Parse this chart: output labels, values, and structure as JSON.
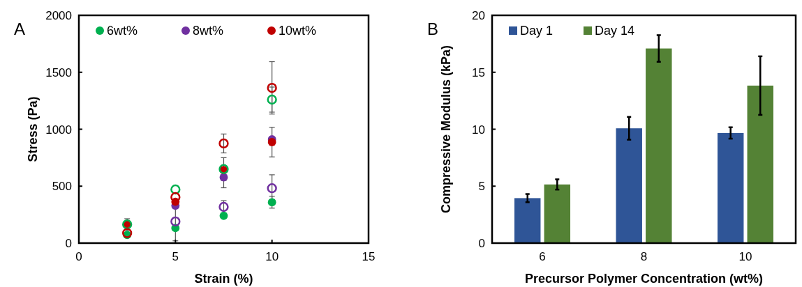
{
  "chart_data": [
    {
      "type": "scatter",
      "title": "A",
      "xlabel": "Strain (%)",
      "ylabel": "Stress (Pa)",
      "xlim": [
        0,
        15
      ],
      "xticks": [
        0,
        5,
        10,
        15
      ],
      "ylim": [
        0,
        2000
      ],
      "yticks": [
        0,
        500,
        1000,
        1500,
        2000
      ],
      "legend": "top",
      "marker": "circle",
      "grid": false,
      "series": [
        {
          "name": "6wt%",
          "color": "#00b050",
          "x": [
            2.5,
            5,
            7.5,
            10
          ],
          "values": [
            72,
            133,
            240,
            359
          ],
          "errors": [
            null,
            null,
            null,
            52
          ]
        },
        {
          "name": "8wt%",
          "color": "#7030a0",
          "x": [
            5,
            7.5,
            10
          ],
          "values": [
            328,
            578,
            912
          ],
          "errors": [
            null,
            92,
            null
          ]
        },
        {
          "name": "10wt%",
          "color": "#c00000",
          "x": [
            2.5,
            5,
            7.5,
            10
          ],
          "values": [
            164,
            363,
            641,
            887
          ],
          "errors": [
            null,
            null,
            null,
            130
          ]
        },
        {
          "color": "#00b050",
          "x": [
            2.5,
            5,
            7.5,
            10
          ],
          "values": [
            164,
            471,
            650,
            1260
          ],
          "errors": [
            50,
            null,
            100,
            110
          ]
        },
        {
          "color": "#7030a0",
          "x": [
            5,
            7.5,
            10
          ],
          "values": [
            190,
            318,
            482
          ],
          "errors": [
            170,
            55,
            118
          ]
        },
        {
          "color": "#c00000",
          "x": [
            2.5,
            5,
            7.5,
            10
          ],
          "values": [
            88,
            404,
            875,
            1363
          ],
          "errors": [
            null,
            null,
            83,
            230
          ]
        }
      ]
    },
    {
      "type": "bar",
      "title": "B",
      "xlabel": "Precursor Polymer Concentration (wt%)",
      "ylabel": "Compressive Modulus (kPa)",
      "categories": [
        "6",
        "8",
        "10"
      ],
      "ylim": [
        0,
        20
      ],
      "yticks": [
        0,
        5,
        10,
        15,
        20
      ],
      "legend": "top left",
      "grid": false,
      "series": [
        {
          "name": "Day 1",
          "color": "#2f5597",
          "values": [
            3.95,
            10.08,
            9.67
          ],
          "errors": [
            0.36,
            1.0,
            0.5
          ]
        },
        {
          "name": "Day 14",
          "color": "#548235",
          "values": [
            5.15,
            17.09,
            13.83
          ],
          "errors": [
            0.45,
            1.17,
            2.57
          ]
        }
      ]
    }
  ]
}
